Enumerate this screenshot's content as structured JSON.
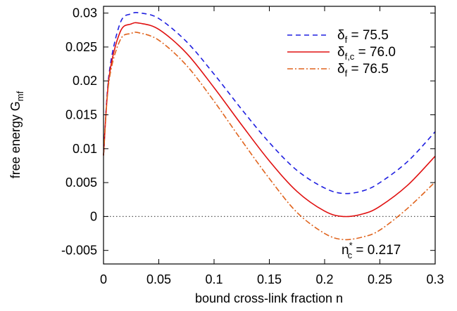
{
  "chart_data": {
    "type": "line",
    "xlabel": "bound cross-link fraction n",
    "ylabel_main": "free energy G",
    "ylabel_sub": "mf",
    "xlim": [
      0,
      0.3
    ],
    "ylim": [
      -0.007,
      0.031
    ],
    "grid": false,
    "legend_placement": "top-right",
    "x_ticks": [
      0,
      0.05,
      0.1,
      0.15,
      0.2,
      0.25,
      0.3
    ],
    "x_tick_labels": [
      "0",
      "0.05",
      "0.1",
      "0.15",
      "0.2",
      "0.25",
      "0.3"
    ],
    "y_ticks": [
      -0.005,
      0,
      0.005,
      0.01,
      0.015,
      0.02,
      0.025,
      0.03
    ],
    "y_tick_labels": [
      "-0.005",
      "0",
      "0.005",
      "0.01",
      "0.015",
      "0.02",
      "0.025",
      "0.03"
    ],
    "annotation": {
      "symbol": "n",
      "sup": "*",
      "sub": "c",
      "text": " = 0.217"
    },
    "reference_line": {
      "y": 0,
      "style": "dotted",
      "color": "#555555"
    },
    "series": [
      {
        "legend_symbol": "δ",
        "legend_sub": "f",
        "legend_value": " = 75.5",
        "color": "#1f1fe0",
        "dash": "7,5",
        "x": [
          0,
          0.005,
          0.015,
          0.025,
          0.034,
          0.05,
          0.075,
          0.1,
          0.125,
          0.15,
          0.175,
          0.2,
          0.217,
          0.235,
          0.25,
          0.275,
          0.3
        ],
        "y": [
          0.009,
          0.021,
          0.0285,
          0.0299,
          0.03,
          0.0292,
          0.0258,
          0.021,
          0.0158,
          0.0109,
          0.0068,
          0.0042,
          0.0034,
          0.0038,
          0.005,
          0.0081,
          0.0125
        ]
      },
      {
        "legend_symbol": "δ",
        "legend_sub": "f,c",
        "legend_value": " = 76.0",
        "color": "#e01010",
        "dash": "",
        "x": [
          0,
          0.005,
          0.015,
          0.025,
          0.033,
          0.05,
          0.075,
          0.1,
          0.125,
          0.15,
          0.175,
          0.2,
          0.217,
          0.235,
          0.25,
          0.275,
          0.3
        ],
        "y": [
          0.009,
          0.0205,
          0.0272,
          0.0284,
          0.0285,
          0.0276,
          0.0241,
          0.019,
          0.0135,
          0.0082,
          0.0037,
          0.0008,
          0.0,
          0.0004,
          0.0015,
          0.0046,
          0.0089
        ]
      },
      {
        "legend_symbol": "δ",
        "legend_sub": "f",
        "legend_value": " = 76.5",
        "color": "#e0641e",
        "dash": "8,3,2,3",
        "x": [
          0,
          0.005,
          0.015,
          0.025,
          0.032,
          0.05,
          0.075,
          0.1,
          0.125,
          0.15,
          0.175,
          0.2,
          0.217,
          0.235,
          0.25,
          0.275,
          0.3
        ],
        "y": [
          0.009,
          0.02,
          0.026,
          0.027,
          0.0271,
          0.026,
          0.0223,
          0.017,
          0.0112,
          0.0056,
          0.0006,
          -0.0025,
          -0.0034,
          -0.003,
          -0.002,
          0.0012,
          0.0051
        ]
      }
    ]
  }
}
